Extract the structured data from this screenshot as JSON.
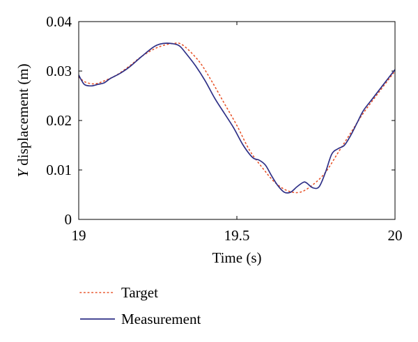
{
  "chart_data": {
    "type": "line",
    "title": "",
    "xlabel": "Time (s)",
    "ylabel_italic": "Y",
    "ylabel_rest": " displacement (m)",
    "xlim": [
      19,
      20
    ],
    "ylim": [
      0,
      0.04
    ],
    "x_ticks": [
      {
        "value": 19,
        "label": "19"
      },
      {
        "value": 19.5,
        "label": "19.5"
      },
      {
        "value": 20,
        "label": "20"
      }
    ],
    "y_ticks": [
      {
        "value": 0,
        "label": "0"
      },
      {
        "value": 0.01,
        "label": "0.01"
      },
      {
        "value": 0.02,
        "label": "0.02"
      },
      {
        "value": 0.03,
        "label": "0.03"
      },
      {
        "value": 0.04,
        "label": "0.04"
      }
    ],
    "grid": false,
    "legend_position": "below-left",
    "series": [
      {
        "name": "Target",
        "color": "#e8542a",
        "style": "dotted",
        "x": [
          19.0,
          19.02,
          19.05,
          19.08,
          19.12,
          19.16,
          19.2,
          19.25,
          19.3,
          19.33,
          19.38,
          19.42,
          19.46,
          19.5,
          19.54,
          19.58,
          19.62,
          19.66,
          19.7,
          19.74,
          19.78,
          19.82,
          19.86,
          19.9,
          19.95,
          20.0
        ],
        "y": [
          0.0288,
          0.0278,
          0.0274,
          0.028,
          0.0292,
          0.031,
          0.033,
          0.0348,
          0.0356,
          0.0352,
          0.032,
          0.028,
          0.0235,
          0.019,
          0.014,
          0.0105,
          0.0075,
          0.0058,
          0.0055,
          0.007,
          0.0095,
          0.0135,
          0.0175,
          0.0215,
          0.0258,
          0.03
        ]
      },
      {
        "name": "Measurement",
        "color": "#2e2f86",
        "style": "solid",
        "x": [
          19.0,
          19.01,
          19.02,
          19.04,
          19.06,
          19.08,
          19.1,
          19.13,
          19.16,
          19.2,
          19.24,
          19.27,
          19.3,
          19.32,
          19.34,
          19.37,
          19.4,
          19.43,
          19.46,
          19.49,
          19.52,
          19.55,
          19.57,
          19.59,
          19.61,
          19.63,
          19.65,
          19.67,
          19.69,
          19.71,
          19.72,
          19.74,
          19.76,
          19.78,
          19.8,
          19.82,
          19.84,
          19.86,
          19.88,
          19.9,
          19.93,
          19.96,
          20.0
        ],
        "y": [
          0.0292,
          0.028,
          0.0272,
          0.027,
          0.0273,
          0.0276,
          0.0285,
          0.0295,
          0.0308,
          0.033,
          0.035,
          0.0356,
          0.0355,
          0.035,
          0.0335,
          0.031,
          0.028,
          0.0245,
          0.0215,
          0.0185,
          0.015,
          0.0125,
          0.012,
          0.011,
          0.0088,
          0.0068,
          0.0055,
          0.0055,
          0.0066,
          0.0075,
          0.0074,
          0.0064,
          0.0066,
          0.0095,
          0.0132,
          0.0143,
          0.015,
          0.017,
          0.0195,
          0.022,
          0.0245,
          0.027,
          0.0303
        ]
      }
    ]
  }
}
